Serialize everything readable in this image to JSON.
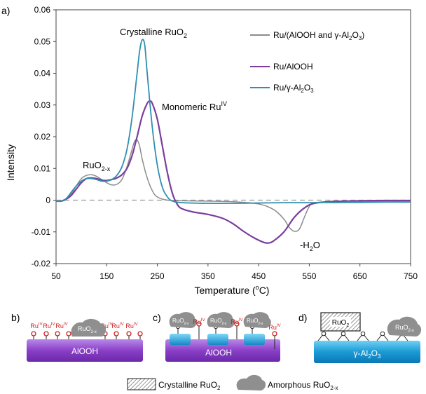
{
  "chart_data": {
    "type": "line",
    "panel_label": "a)",
    "xlabel": "Temperature (",
    "xlabel_sup": "o",
    "xlabel_end": "C)",
    "ylabel": "Intensity",
    "xlim": [
      50,
      750
    ],
    "ylim": [
      -0.02,
      0.06
    ],
    "xticks": [
      50,
      150,
      250,
      350,
      450,
      550,
      650,
      750
    ],
    "yticks": [
      {
        "v": -0.02,
        "t": "-0.02"
      },
      {
        "v": -0.01,
        "t": "-0.01"
      },
      {
        "v": 0,
        "t": "0"
      },
      {
        "v": 0.01,
        "t": "0.01"
      },
      {
        "v": 0.02,
        "t": "0.02"
      },
      {
        "v": 0.03,
        "t": "0.03"
      },
      {
        "v": 0.04,
        "t": "0.04"
      },
      {
        "v": 0.05,
        "t": "0.05"
      },
      {
        "v": 0.06,
        "t": "0.06"
      }
    ],
    "baseline": 0,
    "legend_position": "top-right",
    "series": [
      {
        "name": "Ru/(AlOOH and γ-Al₂O₃)",
        "legend": [
          "Ru/(AlOOH and ",
          "γ",
          "-Al",
          "2",
          "O",
          "3",
          ")"
        ],
        "color": "#8c8c8c",
        "points": [
          [
            50,
            -0.0002
          ],
          [
            60,
            -0.0002
          ],
          [
            70,
            0.0005
          ],
          [
            80,
            0.002
          ],
          [
            90,
            0.0045
          ],
          [
            100,
            0.0068
          ],
          [
            110,
            0.0078
          ],
          [
            120,
            0.008
          ],
          [
            130,
            0.0075
          ],
          [
            140,
            0.0065
          ],
          [
            150,
            0.0055
          ],
          [
            160,
            0.0048
          ],
          [
            170,
            0.005
          ],
          [
            180,
            0.0065
          ],
          [
            190,
            0.0105
          ],
          [
            200,
            0.016
          ],
          [
            205,
            0.0185
          ],
          [
            210,
            0.019
          ],
          [
            215,
            0.017
          ],
          [
            220,
            0.013
          ],
          [
            230,
            0.007
          ],
          [
            240,
            0.003
          ],
          [
            250,
            0.001
          ],
          [
            270,
            0
          ],
          [
            300,
            -0.0002
          ],
          [
            350,
            -0.0003
          ],
          [
            400,
            -0.0005
          ],
          [
            450,
            -0.0012
          ],
          [
            480,
            -0.003
          ],
          [
            500,
            -0.006
          ],
          [
            510,
            -0.0085
          ],
          [
            520,
            -0.0098
          ],
          [
            530,
            -0.0092
          ],
          [
            540,
            -0.0055
          ],
          [
            550,
            -0.002
          ],
          [
            560,
            -0.0008
          ],
          [
            600,
            -0.0008
          ],
          [
            650,
            -0.0006
          ],
          [
            700,
            -0.0004
          ],
          [
            750,
            -0.0003
          ]
        ]
      },
      {
        "name": "Ru/AlOOH",
        "legend": [
          "Ru/AlOOH"
        ],
        "color": "#7a3e9d",
        "points": [
          [
            50,
            -0.0003
          ],
          [
            60,
            -0.0003
          ],
          [
            70,
            0.0003
          ],
          [
            80,
            0.0015
          ],
          [
            90,
            0.0035
          ],
          [
            100,
            0.0055
          ],
          [
            110,
            0.0068
          ],
          [
            120,
            0.007
          ],
          [
            130,
            0.0068
          ],
          [
            140,
            0.0063
          ],
          [
            150,
            0.0062
          ],
          [
            160,
            0.0065
          ],
          [
            170,
            0.007
          ],
          [
            180,
            0.008
          ],
          [
            190,
            0.01
          ],
          [
            200,
            0.014
          ],
          [
            210,
            0.02
          ],
          [
            220,
            0.0265
          ],
          [
            230,
            0.0305
          ],
          [
            235,
            0.0312
          ],
          [
            240,
            0.0305
          ],
          [
            250,
            0.0255
          ],
          [
            260,
            0.017
          ],
          [
            270,
            0.0085
          ],
          [
            280,
            0.002
          ],
          [
            290,
            -0.0015
          ],
          [
            300,
            -0.0028
          ],
          [
            320,
            -0.0037
          ],
          [
            350,
            -0.0045
          ],
          [
            380,
            -0.0058
          ],
          [
            400,
            -0.0075
          ],
          [
            420,
            -0.0098
          ],
          [
            440,
            -0.0118
          ],
          [
            460,
            -0.0133
          ],
          [
            470,
            -0.0135
          ],
          [
            480,
            -0.0128
          ],
          [
            500,
            -0.01
          ],
          [
            520,
            -0.0055
          ],
          [
            540,
            -0.0025
          ],
          [
            560,
            -0.001
          ],
          [
            600,
            -0.0004
          ],
          [
            650,
            -0.0002
          ],
          [
            700,
            -0.0001
          ],
          [
            750,
            -0.0001
          ]
        ]
      },
      {
        "name": "Ru/γ-Al₂O₃",
        "legend": [
          "Ru/",
          "γ",
          "-Al",
          "2",
          "O",
          "3",
          ""
        ],
        "color": "#2f8fb0",
        "points": [
          [
            50,
            -0.0003
          ],
          [
            60,
            -0.0003
          ],
          [
            70,
            0.0005
          ],
          [
            80,
            0.0025
          ],
          [
            90,
            0.0045
          ],
          [
            100,
            0.006
          ],
          [
            110,
            0.0068
          ],
          [
            120,
            0.0068
          ],
          [
            130,
            0.0065
          ],
          [
            140,
            0.006
          ],
          [
            150,
            0.006
          ],
          [
            160,
            0.0065
          ],
          [
            170,
            0.0078
          ],
          [
            180,
            0.0105
          ],
          [
            190,
            0.016
          ],
          [
            200,
            0.026
          ],
          [
            210,
            0.04
          ],
          [
            215,
            0.047
          ],
          [
            220,
            0.0505
          ],
          [
            225,
            0.049
          ],
          [
            230,
            0.04
          ],
          [
            240,
            0.023
          ],
          [
            250,
            0.011
          ],
          [
            260,
            0.004
          ],
          [
            270,
            0.001
          ],
          [
            280,
            -0.0003
          ],
          [
            300,
            -0.0008
          ],
          [
            350,
            -0.001
          ],
          [
            400,
            -0.001
          ],
          [
            450,
            -0.0009
          ],
          [
            500,
            -0.0008
          ],
          [
            550,
            -0.0008
          ],
          [
            600,
            -0.0007
          ],
          [
            650,
            -0.0007
          ],
          [
            700,
            -0.0006
          ],
          [
            750,
            -0.0006
          ]
        ]
      }
    ],
    "annotations": {
      "crystalline": {
        "main": "Crystalline RuO",
        "sub": "2"
      },
      "monomeric": {
        "main": "Monomeric Ru",
        "sup": "IV"
      },
      "ruo2x": {
        "main": "RuO",
        "sub": "2-x"
      },
      "water": {
        "main": "-H",
        "sub": "2",
        "end": "O"
      }
    }
  },
  "schematic": {
    "b": {
      "label": "b)",
      "support": "AlOOH",
      "ru": "Ru",
      "ru_sup": "IV",
      "cluster": "RuO",
      "cluster_sub": "2-x"
    },
    "c": {
      "label": "c)",
      "support": "AlOOH",
      "ru": "Ru",
      "ru_sup": "IV",
      "cluster": "RuO",
      "cluster_sub": "2-x"
    },
    "d": {
      "label": "d)",
      "support_prefix": "γ",
      "support_main": "-Al",
      "support_sub1": "2",
      "support_o": "O",
      "support_sub2": "3",
      "crystal": "RuO",
      "crystal_sub": "2",
      "cluster": "RuO",
      "cluster_sub": "2-x"
    },
    "legend": {
      "crystalline": "Crystalline RuO",
      "crystalline_sub": "2",
      "amorphous": "Amorphous RuO",
      "amorphous_sub": "2-x"
    }
  },
  "colors": {
    "alooh": "#8a3fc8",
    "alooh_light": "#b27ae0",
    "gamma": "#1a9ad6",
    "gamma_light": "#5cc2ee",
    "ru_red": "#cc1f1f",
    "cluster_gray": "#8f8f8f",
    "baseline": "#9a9a9a"
  }
}
